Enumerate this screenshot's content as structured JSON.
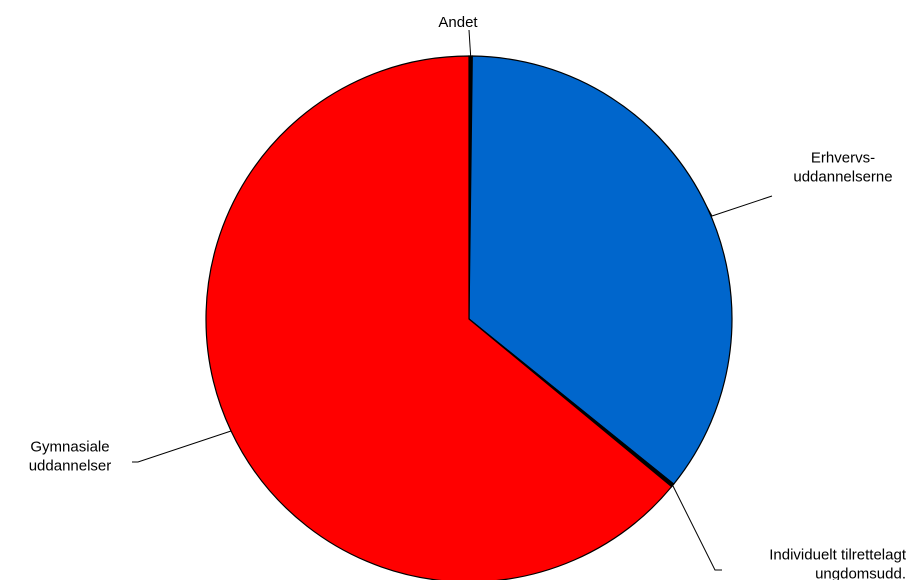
{
  "chart_data": {
    "type": "pie",
    "title": "",
    "slices": [
      {
        "label": [
          "Andet"
        ],
        "value": 0.2,
        "color": "#000000"
      },
      {
        "label": [
          "Erhvervs-",
          "uddannelserne"
        ],
        "value": 35.6,
        "color": "#0066CC"
      },
      {
        "label": [
          "Individuelt tilrettelagt",
          "ungdomsudd."
        ],
        "value": 0.2,
        "color": "#000000"
      },
      {
        "label": [
          "Gymnasiale",
          "uddannelser"
        ],
        "value": 64.0,
        "color": "#FF0000"
      }
    ]
  }
}
